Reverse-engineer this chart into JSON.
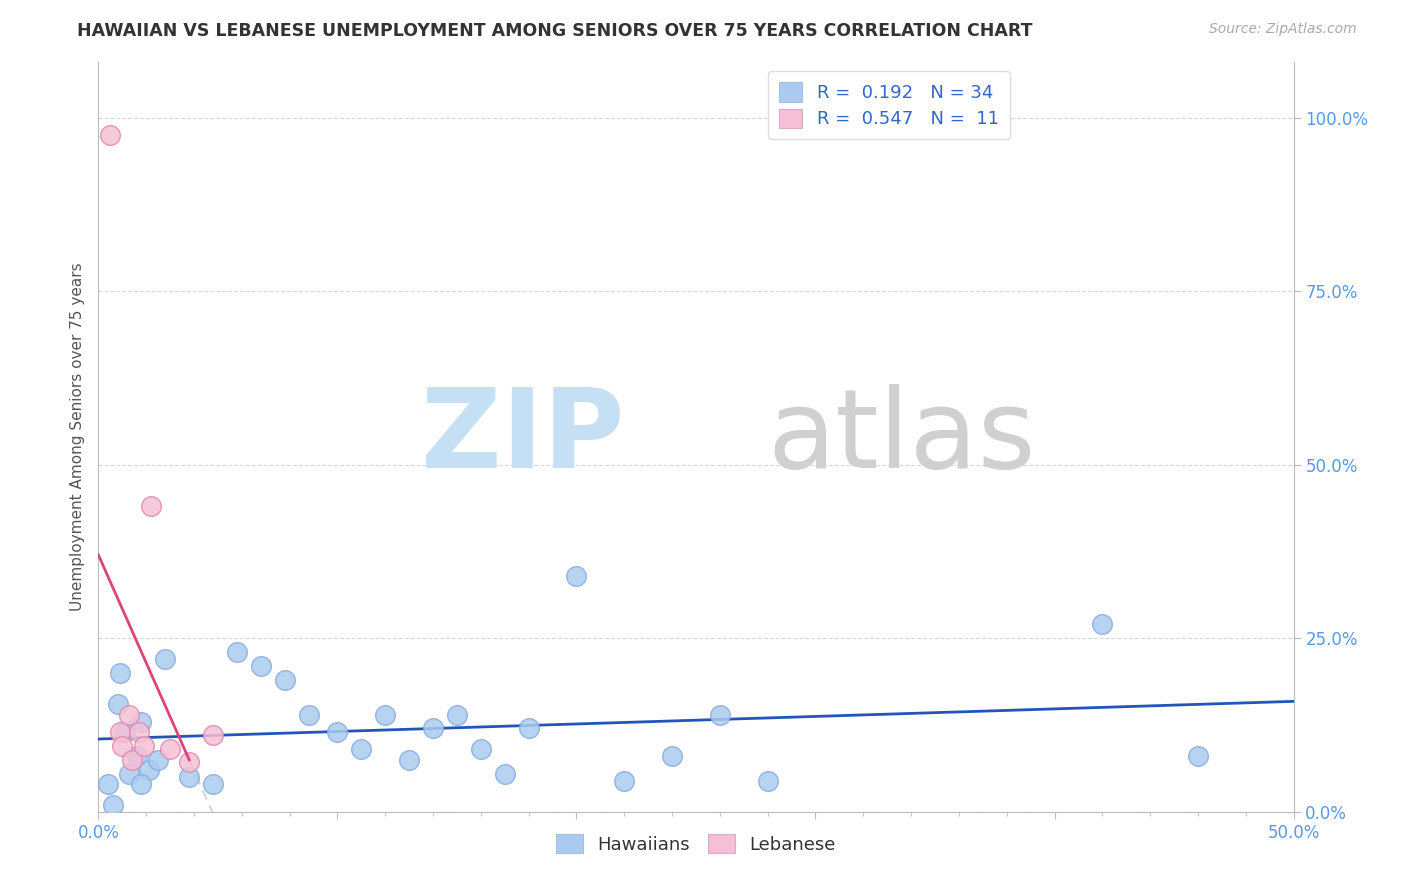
{
  "title": "HAWAIIAN VS LEBANESE UNEMPLOYMENT AMONG SENIORS OVER 75 YEARS CORRELATION CHART",
  "source": "Source: ZipAtlas.com",
  "ylabel": "Unemployment Among Seniors over 75 years",
  "xlim": [
    0.0,
    0.5
  ],
  "ylim": [
    0.0,
    1.08
  ],
  "xticks": [
    0.0,
    0.1,
    0.2,
    0.3,
    0.4,
    0.5
  ],
  "xtick_labels": [
    "0.0%",
    "",
    "",
    "",
    "",
    "50.0%"
  ],
  "yticks": [
    0.0,
    0.25,
    0.5,
    0.75,
    1.0
  ],
  "ytick_labels": [
    "0.0%",
    "25.0%",
    "50.0%",
    "75.0%",
    "100.0%"
  ],
  "tick_color": "#5599ee",
  "hawaiian_color": "#aaccf0",
  "hawaiian_edge": "#88aadd",
  "lebanese_color": "#f5c0d5",
  "lebanese_edge": "#dd88aa",
  "trendline_hawaiian_color": "#2255bb",
  "trendline_lebanese_color": "#dd4477",
  "trendline_dashed_color": "#cccccc",
  "legend_R_hawaiian": "0.192",
  "legend_N_hawaiian": "34",
  "legend_R_lebanese": "0.547",
  "legend_N_lebanese": "11",
  "legend_text_color": "#3366cc",
  "watermark_zip": "ZIP",
  "watermark_atlas": "atlas",
  "watermark_zip_color": "#c5dff5",
  "watermark_atlas_color": "#d0d0d0",
  "hawaiian_x": [
    0.008,
    0.018,
    0.009,
    0.004,
    0.011,
    0.013,
    0.016,
    0.021,
    0.028,
    0.018,
    0.025,
    0.006,
    0.038,
    0.048,
    0.058,
    0.068,
    0.078,
    0.088,
    0.1,
    0.11,
    0.12,
    0.13,
    0.14,
    0.15,
    0.16,
    0.17,
    0.18,
    0.2,
    0.22,
    0.24,
    0.26,
    0.28,
    0.42,
    0.46
  ],
  "hawaiian_y": [
    0.155,
    0.13,
    0.2,
    0.04,
    0.115,
    0.055,
    0.08,
    0.06,
    0.22,
    0.04,
    0.075,
    0.01,
    0.05,
    0.04,
    0.23,
    0.21,
    0.19,
    0.14,
    0.115,
    0.09,
    0.14,
    0.075,
    0.12,
    0.14,
    0.09,
    0.055,
    0.12,
    0.34,
    0.045,
    0.08,
    0.14,
    0.045,
    0.27,
    0.08
  ],
  "lebanese_x": [
    0.005,
    0.009,
    0.01,
    0.013,
    0.014,
    0.017,
    0.019,
    0.022,
    0.03,
    0.038,
    0.048
  ],
  "lebanese_y": [
    0.975,
    0.115,
    0.095,
    0.14,
    0.075,
    0.115,
    0.095,
    0.44,
    0.09,
    0.072,
    0.11
  ],
  "trendline_h_x0": 0.0,
  "trendline_h_x1": 0.5,
  "trendline_l_solid_x0": 0.0,
  "trendline_l_solid_x1": 0.038,
  "trendline_l_dash_x0": 0.038,
  "trendline_l_dash_x1": 0.28
}
